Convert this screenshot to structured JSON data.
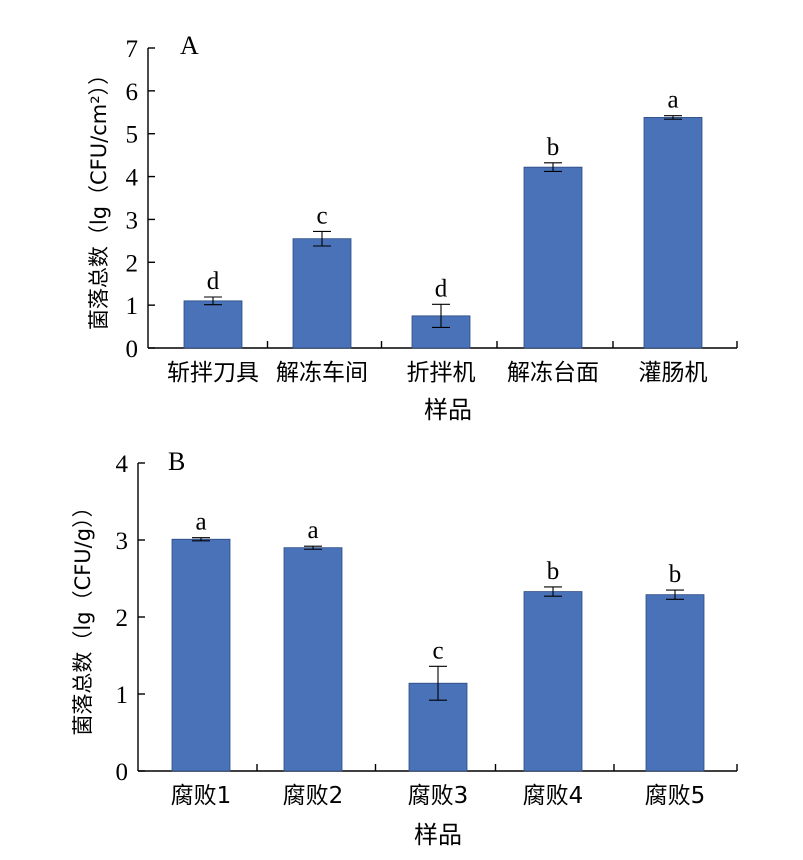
{
  "chart_data": [
    {
      "type": "bar",
      "panel_label": "A",
      "xlabel": "样品",
      "ylabel": "菌落总数（lg（CFU/cm²））",
      "ylim": [
        0,
        7
      ],
      "yticks": [
        "0",
        "1",
        "2",
        "3",
        "4",
        "5",
        "6",
        "7"
      ],
      "categories": [
        "斩拌刀具",
        "解冻车间",
        "折拌机",
        "解冻台面",
        "灌肠机"
      ],
      "values": [
        1.1,
        2.55,
        0.75,
        4.22,
        5.38
      ],
      "errors": [
        0.09,
        0.17,
        0.27,
        0.1,
        0.04
      ],
      "significance": [
        "d",
        "c",
        "d",
        "b",
        "a"
      ]
    },
    {
      "type": "bar",
      "panel_label": "B",
      "xlabel": "样品",
      "ylabel": "菌落总数（lg（CFU/g））",
      "ylim": [
        0,
        4
      ],
      "yticks": [
        "0",
        "1",
        "2",
        "3",
        "4"
      ],
      "categories": [
        "腐败1",
        "腐败2",
        "腐败3",
        "腐败4",
        "腐败5"
      ],
      "values": [
        3.01,
        2.9,
        1.14,
        2.33,
        2.29
      ],
      "errors": [
        0.02,
        0.02,
        0.22,
        0.06,
        0.06
      ],
      "significance": [
        "a",
        "a",
        "c",
        "b",
        "b"
      ]
    }
  ]
}
